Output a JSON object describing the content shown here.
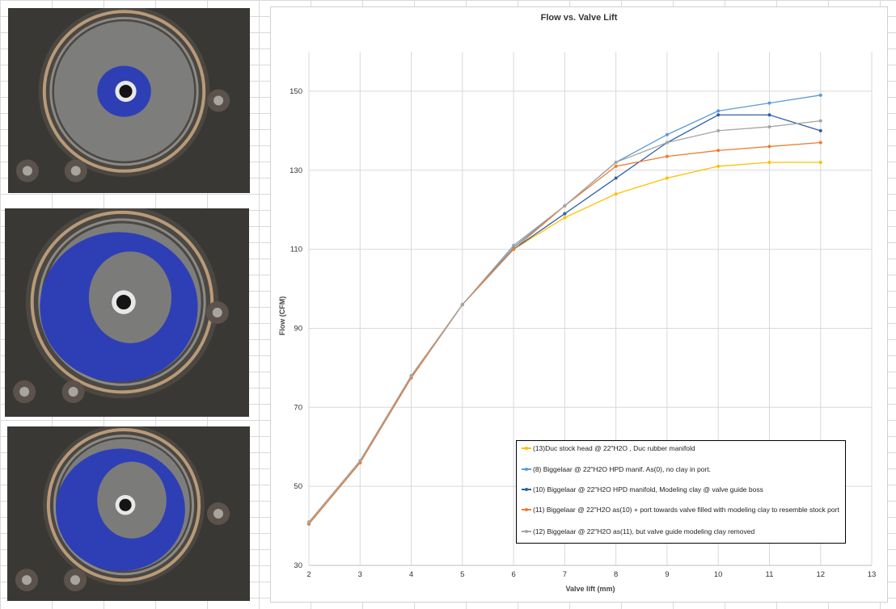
{
  "photos": [
    {
      "name": "valve-port-photo-1",
      "clay": "small"
    },
    {
      "name": "valve-port-photo-2",
      "clay": "large"
    },
    {
      "name": "valve-port-photo-3",
      "clay": "full"
    }
  ],
  "chart_data": {
    "type": "line",
    "title": "Flow vs. Valve Lift",
    "xlabel": "Valve lift (mm)",
    "ylabel": "Flow (CFM)",
    "xlim": [
      2,
      13
    ],
    "ylim": [
      30,
      160
    ],
    "xticks": [
      2,
      3,
      4,
      5,
      6,
      7,
      8,
      9,
      10,
      11,
      12,
      13
    ],
    "yticks": [
      30,
      50,
      70,
      90,
      110,
      130,
      150
    ],
    "grid": true,
    "legend_position": "bottom-right",
    "x": [
      2,
      3,
      4,
      5,
      6,
      7,
      8,
      9,
      10,
      11,
      12
    ],
    "series": [
      {
        "name": "(13)Duc stock head @ 22\"H2O , Duc rubber manifold",
        "color": "#FFC000",
        "values": [
          40.5,
          56,
          78,
          96,
          110,
          118,
          124,
          128,
          131,
          132,
          132
        ]
      },
      {
        "name": "(8) Biggelaar @ 22\"H2O HPD manif. As(0), no clay in port.",
        "color": "#5B9BD5",
        "values": [
          40.5,
          56,
          77.5,
          96,
          110.5,
          121,
          132,
          139,
          145,
          147,
          149
        ]
      },
      {
        "name": "(10) Biggelaar @ 22\"H2O HPD manifold, Modeling clay @ valve guide boss",
        "color": "#2F5FA8",
        "values": [
          40.5,
          56,
          77.5,
          96,
          110,
          119,
          128,
          137,
          144,
          144,
          140
        ]
      },
      {
        "name": "(11) Biggelaar @ 22\"H2O as(10) + port towards valve filled with modeling clay to resemble stock port",
        "color": "#ED7D31",
        "values": [
          40.5,
          56,
          77.5,
          96,
          110,
          121,
          131,
          133.5,
          135,
          136,
          137
        ]
      },
      {
        "name": "(12) Biggelaar @ 22\"H2O as(11), but valve guide modeling clay removed",
        "color": "#A5A5A5",
        "values": [
          41,
          56.5,
          78,
          96,
          111,
          121,
          132,
          137,
          140,
          141,
          142.5
        ]
      }
    ]
  }
}
